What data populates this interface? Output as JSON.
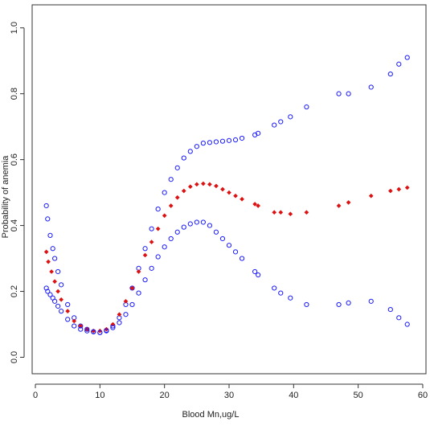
{
  "chart_data": {
    "type": "scatter",
    "title": "",
    "xlabel": "Blood Mn,ug/L",
    "ylabel": "Probability of anemia",
    "xlim": [
      -0.5,
      60.5
    ],
    "ylim": [
      -0.05,
      1.07
    ],
    "x_ticks": [
      0,
      10,
      20,
      30,
      40,
      50,
      60
    ],
    "y_ticks": [
      0.0,
      0.2,
      0.4,
      0.6,
      0.8,
      1.0
    ],
    "x_tick_labels": [
      "0",
      "10",
      "20",
      "30",
      "40",
      "50",
      "60"
    ],
    "y_tick_labels": [
      "0.0",
      "0.2",
      "0.4",
      "0.6",
      "0.8",
      "1.0"
    ],
    "grid": false,
    "series": [
      {
        "marker": "open-circle",
        "color": "#1a1aff",
        "x": [
          1.7,
          1.9,
          2.3,
          2.7,
          3.0,
          3.5,
          4.0,
          5.0,
          6.0,
          7.0,
          8.0,
          9.0,
          10.0,
          11.0,
          12.0,
          13.0,
          14.0,
          15.0,
          16.0,
          17.0,
          18.0,
          19.0,
          20.0,
          21.0,
          22.0,
          23.0,
          24.0,
          25.0,
          26.0,
          27.0,
          28.0,
          29.0,
          30.0,
          31.0,
          32.0,
          34.0,
          34.5,
          37.0,
          38.0,
          39.5,
          42.0,
          47.0,
          48.5,
          52.0,
          55.0,
          56.3,
          57.6
        ],
        "y": [
          0.46,
          0.42,
          0.37,
          0.33,
          0.3,
          0.26,
          0.22,
          0.16,
          0.12,
          0.095,
          0.085,
          0.078,
          0.075,
          0.082,
          0.095,
          0.12,
          0.16,
          0.21,
          0.27,
          0.33,
          0.39,
          0.45,
          0.5,
          0.54,
          0.575,
          0.605,
          0.625,
          0.64,
          0.65,
          0.652,
          0.654,
          0.656,
          0.658,
          0.66,
          0.665,
          0.675,
          0.68,
          0.705,
          0.715,
          0.73,
          0.76,
          0.8,
          0.8,
          0.82,
          0.86,
          0.89,
          0.91
        ]
      },
      {
        "marker": "filled-diamond",
        "color": "#dd1111",
        "x": [
          1.7,
          2.0,
          2.5,
          3.0,
          3.5,
          4.0,
          5.0,
          6.0,
          7.0,
          8.0,
          9.0,
          10.0,
          11.0,
          12.0,
          13.0,
          14.0,
          15.0,
          16.0,
          17.0,
          18.0,
          19.0,
          20.0,
          21.0,
          22.0,
          23.0,
          24.0,
          25.0,
          26.0,
          27.0,
          28.0,
          29.0,
          30.0,
          31.0,
          32.0,
          34.0,
          34.5,
          37.0,
          38.0,
          39.5,
          42.0,
          47.0,
          48.5,
          52.0,
          55.0,
          56.3,
          57.6
        ],
        "y": [
          0.32,
          0.29,
          0.26,
          0.23,
          0.2,
          0.175,
          0.14,
          0.11,
          0.095,
          0.085,
          0.08,
          0.08,
          0.085,
          0.1,
          0.13,
          0.17,
          0.21,
          0.26,
          0.31,
          0.35,
          0.39,
          0.43,
          0.46,
          0.485,
          0.505,
          0.518,
          0.525,
          0.527,
          0.525,
          0.52,
          0.51,
          0.5,
          0.49,
          0.48,
          0.465,
          0.46,
          0.44,
          0.44,
          0.435,
          0.44,
          0.46,
          0.47,
          0.49,
          0.505,
          0.51,
          0.515
        ]
      },
      {
        "marker": "open-circle",
        "color": "#1a1aff",
        "x": [
          1.7,
          1.9,
          2.3,
          2.7,
          3.0,
          3.5,
          4.0,
          5.0,
          6.0,
          7.0,
          8.0,
          9.0,
          10.0,
          11.0,
          12.0,
          13.0,
          14.0,
          15.0,
          16.0,
          17.0,
          18.0,
          19.0,
          20.0,
          21.0,
          22.0,
          23.0,
          24.0,
          25.0,
          26.0,
          27.0,
          28.0,
          29.0,
          30.0,
          31.0,
          32.0,
          34.0,
          34.5,
          37.0,
          38.0,
          39.5,
          42.0,
          47.0,
          48.5,
          52.0,
          55.0,
          56.3,
          57.6
        ],
        "y": [
          0.21,
          0.2,
          0.19,
          0.18,
          0.17,
          0.155,
          0.14,
          0.115,
          0.095,
          0.085,
          0.08,
          0.077,
          0.075,
          0.08,
          0.09,
          0.105,
          0.13,
          0.16,
          0.195,
          0.235,
          0.27,
          0.305,
          0.335,
          0.36,
          0.38,
          0.395,
          0.405,
          0.41,
          0.41,
          0.4,
          0.38,
          0.36,
          0.34,
          0.32,
          0.3,
          0.26,
          0.25,
          0.21,
          0.195,
          0.18,
          0.16,
          0.16,
          0.165,
          0.17,
          0.145,
          0.12,
          0.1
        ]
      }
    ]
  }
}
